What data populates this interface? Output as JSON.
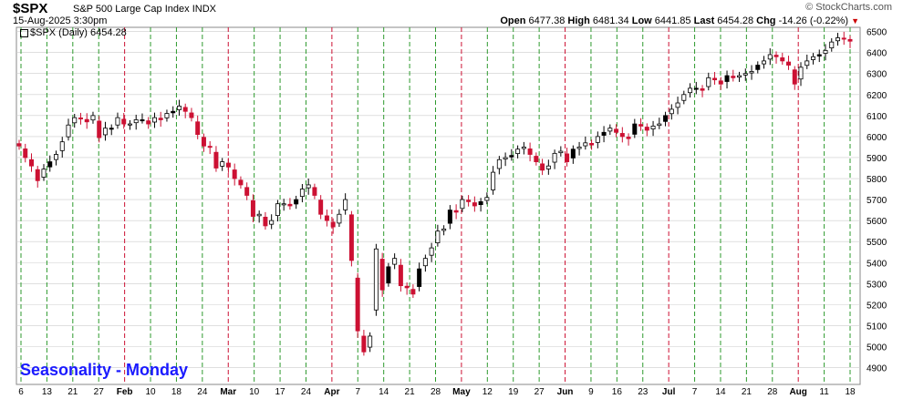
{
  "header": {
    "symbol": "$SPX",
    "name": "S&P 500 Large Cap Index",
    "exchange": "INDX",
    "datetime": "15-Aug-2025 3:30pm",
    "brand": "© StockCharts.com",
    "open_label": "Open",
    "open": "6477.38",
    "high_label": "High",
    "high": "6481.34",
    "low_label": "Low",
    "low": "6441.85",
    "last_label": "Last",
    "last": "6454.28",
    "chg_label": "Chg",
    "chg": "-14.26 (-0.22%)",
    "series_label": "$SPX (Daily) 6454.28"
  },
  "annotation": "Seasonality - Monday",
  "colors": {
    "up_candle": "#000000",
    "down_candle": "#cc1133",
    "monday_line": "#2e9a2e",
    "month_line": "#cc1133",
    "grid": "#cccccc",
    "annotation": "#1a1aff"
  },
  "chart_data": {
    "type": "candlestick",
    "title": "$SPX (Daily)",
    "ylim": [
      4820,
      6520
    ],
    "y_ticks": [
      4900,
      5000,
      5100,
      5200,
      5300,
      5400,
      5500,
      5600,
      5700,
      5800,
      5900,
      6000,
      6100,
      6200,
      6300,
      6400,
      6500
    ],
    "x_labels": [
      "6",
      "13",
      "21",
      "27",
      "Feb",
      "10",
      "18",
      "24",
      "Mar",
      "10",
      "17",
      "24",
      "Apr",
      "7",
      "14",
      "21",
      "28",
      "May",
      "12",
      "19",
      "27",
      "Jun",
      "9",
      "16",
      "23",
      "Jul",
      "7",
      "14",
      "21",
      "28",
      "Aug",
      "11",
      "18"
    ],
    "x_label_bold": [
      "Feb",
      "Mar",
      "Apr",
      "May",
      "Jun",
      "Jul",
      "Aug"
    ],
    "monday_lines": [
      "6",
      "13",
      "21",
      "27",
      "Feb",
      "10",
      "18",
      "24",
      "Mar",
      "10",
      "17",
      "24",
      "Apr",
      "7",
      "14",
      "21",
      "28",
      "May",
      "12",
      "19",
      "27",
      "Jun",
      "9",
      "16",
      "23",
      "Jul",
      "7",
      "14",
      "21",
      "28",
      "Aug",
      "11",
      "18"
    ],
    "month_starts": [
      "Feb",
      "Mar",
      "Apr",
      "May",
      "Jun",
      "Jul",
      "Aug"
    ],
    "daily_close": [
      5955,
      5900,
      5860,
      5790,
      5845,
      5880,
      5915,
      5975,
      6055,
      6090,
      6085,
      6070,
      6100,
      5995,
      6040,
      6040,
      6090,
      6060,
      6060,
      6080,
      6080,
      6060,
      6090,
      6080,
      6110,
      6120,
      6145,
      6120,
      6090,
      6010,
      5955,
      5950,
      5850,
      5880,
      5855,
      5800,
      5770,
      5720,
      5620,
      5630,
      5575,
      5600,
      5680,
      5680,
      5670,
      5700,
      5750,
      5770,
      5720,
      5630,
      5600,
      5570,
      5630,
      5700,
      5410,
      5075,
      4975,
      5050,
      5465,
      5270,
      5380,
      5420,
      5290,
      5280,
      5250,
      5370,
      5420,
      5470,
      5550,
      5560,
      5650,
      5640,
      5700,
      5690,
      5670,
      5690,
      5710,
      5830,
      5890,
      5900,
      5910,
      5940,
      5950,
      5915,
      5880,
      5840,
      5860,
      5920,
      5930,
      5880,
      5940,
      5950,
      5970,
      5960,
      6000,
      6020,
      6040,
      6020,
      6000,
      5990,
      6060,
      6050,
      6030,
      6050,
      6060,
      6100,
      6130,
      6160,
      6200,
      6230,
      6230,
      6220,
      6280,
      6270,
      6250,
      6290,
      6280,
      6290,
      6300,
      6310,
      6340,
      6360,
      6390,
      6380,
      6360,
      6340,
      6250,
      6330,
      6360,
      6380,
      6390,
      6410,
      6450,
      6470,
      6465,
      6454
    ]
  }
}
